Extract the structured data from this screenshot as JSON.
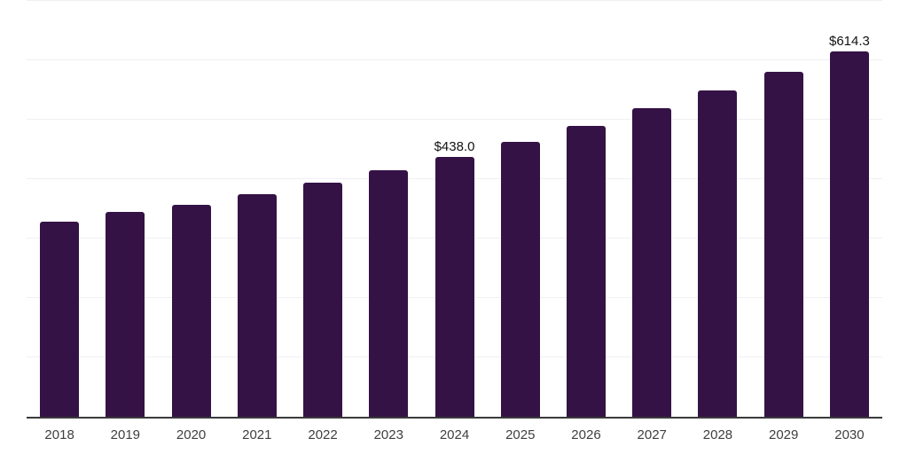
{
  "chart_data": {
    "type": "bar",
    "title": "",
    "xlabel": "",
    "ylabel": "",
    "categories": [
      "2018",
      "2019",
      "2020",
      "2021",
      "2022",
      "2023",
      "2024",
      "2025",
      "2026",
      "2027",
      "2028",
      "2029",
      "2030"
    ],
    "values": [
      328.1,
      344.9,
      356.4,
      374.4,
      394.1,
      415.0,
      438.0,
      463.4,
      490.3,
      518.7,
      548.8,
      580.6,
      614.3
    ],
    "value_labels": [
      "",
      "",
      "",
      "",
      "",
      "",
      "$438.0",
      "",
      "",
      "",
      "",
      "",
      "$614.3"
    ],
    "ylim": [
      0,
      700
    ],
    "gridline_step": 100,
    "grid": true,
    "legend": false,
    "y_axis_labels_visible": false,
    "bar_color": "#341245",
    "gridline_color": "#f0f0f4",
    "axis_line_color": "#3a3a3a",
    "tick_label_color": "#3f3f3f",
    "value_label_color": "#121212",
    "background_color": "#ffffff"
  }
}
